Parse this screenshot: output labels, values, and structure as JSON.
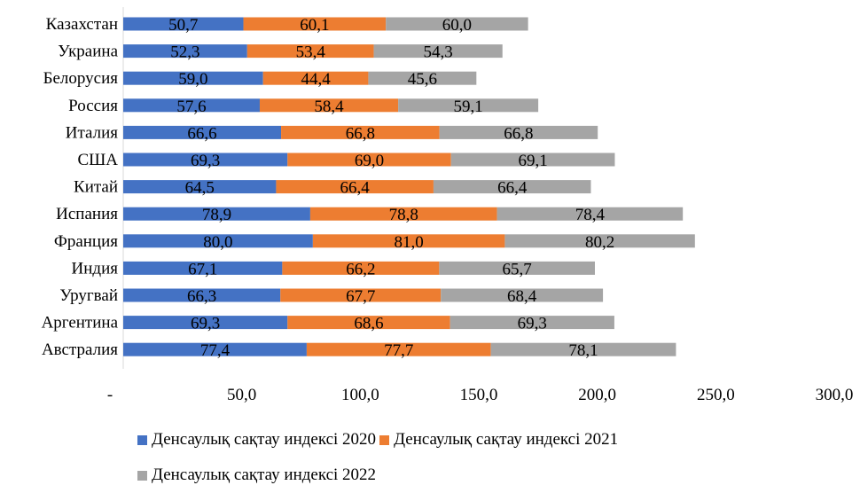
{
  "chart_data": {
    "type": "bar",
    "orientation": "horizontal",
    "stacked": true,
    "categories": [
      "Казахстан",
      "Украина",
      "Белорусия",
      "Россия",
      "Италия",
      "США",
      "Китай",
      "Испания",
      "Франция",
      "Индия",
      "Уругвай",
      "Аргентина",
      "Австралия"
    ],
    "series": [
      {
        "name": "Денсаулық сақтау индексі 2020",
        "color": "#4472C4",
        "values": [
          50.7,
          52.3,
          59.0,
          57.6,
          66.6,
          69.3,
          64.5,
          78.9,
          80.0,
          67.1,
          66.3,
          69.3,
          77.4
        ],
        "labels": [
          "50,7",
          "52,3",
          "59,0",
          "57,6",
          "66,6",
          "69,3",
          "64,5",
          "78,9",
          "80,0",
          "67,1",
          "66,3",
          "69,3",
          "77,4"
        ]
      },
      {
        "name": "Денсаулық сақтау индексі 2021",
        "color": "#ED7D31",
        "values": [
          60.1,
          53.4,
          44.4,
          58.4,
          66.8,
          69.0,
          66.4,
          78.8,
          81.0,
          66.2,
          67.7,
          68.6,
          77.7
        ],
        "labels": [
          "60,1",
          "53,4",
          "44,4",
          "58,4",
          "66,8",
          "69,0",
          "66,4",
          "78,8",
          "81,0",
          "66,2",
          "67,7",
          "68,6",
          "77,7"
        ]
      },
      {
        "name": "Денсаулық сақтау индексі 2022",
        "color": "#A5A5A5",
        "values": [
          60.0,
          54.3,
          45.6,
          59.1,
          66.8,
          69.1,
          66.4,
          78.4,
          80.2,
          65.7,
          68.4,
          69.3,
          78.1
        ],
        "labels": [
          "60,0",
          "54,3",
          "45,6",
          "59,1",
          "66,8",
          "69,1",
          "66,4",
          "78,4",
          "80,2",
          "65,7",
          "68,4",
          "69,3",
          "78,1"
        ]
      }
    ],
    "xlim": [
      0,
      300
    ],
    "ticks": [
      0,
      50,
      100,
      150,
      200,
      250,
      300
    ],
    "tick_labels": [
      "-",
      "50,0",
      "100,0",
      "150,0",
      "200,0",
      "250,0",
      "300,0"
    ],
    "grid": false,
    "legend_position": "bottom"
  }
}
